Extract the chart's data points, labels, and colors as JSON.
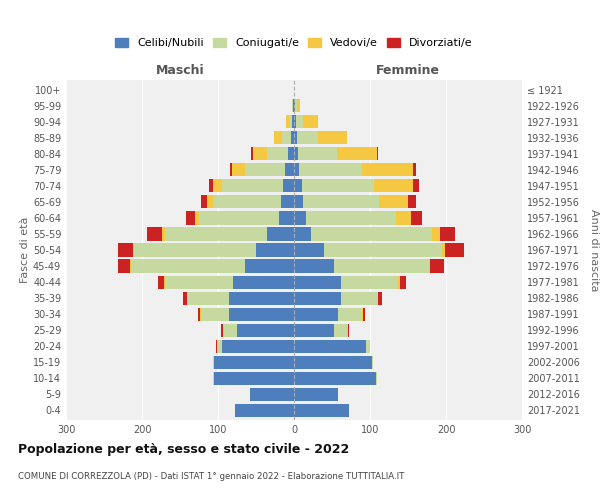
{
  "age_groups": [
    "0-4",
    "5-9",
    "10-14",
    "15-19",
    "20-24",
    "25-29",
    "30-34",
    "35-39",
    "40-44",
    "45-49",
    "50-54",
    "55-59",
    "60-64",
    "65-69",
    "70-74",
    "75-79",
    "80-84",
    "85-89",
    "90-94",
    "95-99",
    "100+"
  ],
  "birth_years": [
    "2017-2021",
    "2012-2016",
    "2007-2011",
    "2002-2006",
    "1997-2001",
    "1992-1996",
    "1987-1991",
    "1982-1986",
    "1977-1981",
    "1972-1976",
    "1967-1971",
    "1962-1966",
    "1957-1961",
    "1952-1956",
    "1947-1951",
    "1942-1946",
    "1937-1941",
    "1932-1936",
    "1927-1931",
    "1922-1926",
    "≤ 1921"
  ],
  "maschi": {
    "celibi": [
      78,
      58,
      105,
      105,
      95,
      75,
      85,
      85,
      80,
      65,
      50,
      35,
      20,
      17,
      15,
      12,
      8,
      4,
      2,
      1,
      0
    ],
    "coniugati": [
      0,
      0,
      1,
      2,
      5,
      18,
      38,
      55,
      90,
      150,
      160,
      135,
      105,
      90,
      80,
      52,
      28,
      12,
      5,
      1,
      0
    ],
    "vedovi": [
      0,
      0,
      0,
      0,
      1,
      1,
      1,
      1,
      1,
      1,
      2,
      4,
      5,
      8,
      12,
      18,
      18,
      10,
      4,
      1,
      0
    ],
    "divorziati": [
      0,
      0,
      0,
      0,
      1,
      2,
      2,
      5,
      8,
      15,
      20,
      20,
      12,
      8,
      5,
      2,
      2,
      0,
      0,
      0,
      0
    ]
  },
  "femmine": {
    "nubili": [
      72,
      58,
      108,
      102,
      95,
      52,
      58,
      62,
      62,
      52,
      40,
      22,
      16,
      12,
      10,
      7,
      5,
      4,
      2,
      1,
      0
    ],
    "coniugate": [
      0,
      0,
      1,
      2,
      5,
      18,
      32,
      48,
      75,
      125,
      155,
      160,
      118,
      100,
      95,
      82,
      52,
      28,
      10,
      3,
      0
    ],
    "vedove": [
      0,
      0,
      0,
      0,
      0,
      1,
      1,
      1,
      2,
      2,
      4,
      10,
      20,
      38,
      52,
      68,
      52,
      38,
      20,
      4,
      0
    ],
    "divorziate": [
      0,
      0,
      0,
      0,
      0,
      1,
      2,
      5,
      8,
      18,
      25,
      20,
      14,
      10,
      8,
      4,
      2,
      0,
      0,
      0,
      0
    ]
  },
  "colors": {
    "celibi": "#4e7fbc",
    "coniugati": "#c5d9a0",
    "vedovi": "#f5c842",
    "divorziati": "#cc2222"
  },
  "legend_labels": [
    "Celibi/Nubili",
    "Coniugati/e",
    "Vedovi/e",
    "Divorziati/e"
  ],
  "title": "Popolazione per età, sesso e stato civile - 2022",
  "subtitle": "COMUNE DI CORREZZOLA (PD) - Dati ISTAT 1° gennaio 2022 - Elaborazione TUTTITALIA.IT",
  "xlabel_left": "Maschi",
  "xlabel_right": "Femmine",
  "ylabel_left": "Fasce di età",
  "ylabel_right": "Anni di nascita",
  "xlim": 300,
  "bg_color": "#ffffff",
  "plot_bg": "#f0f0f0",
  "grid_color": "#ffffff"
}
